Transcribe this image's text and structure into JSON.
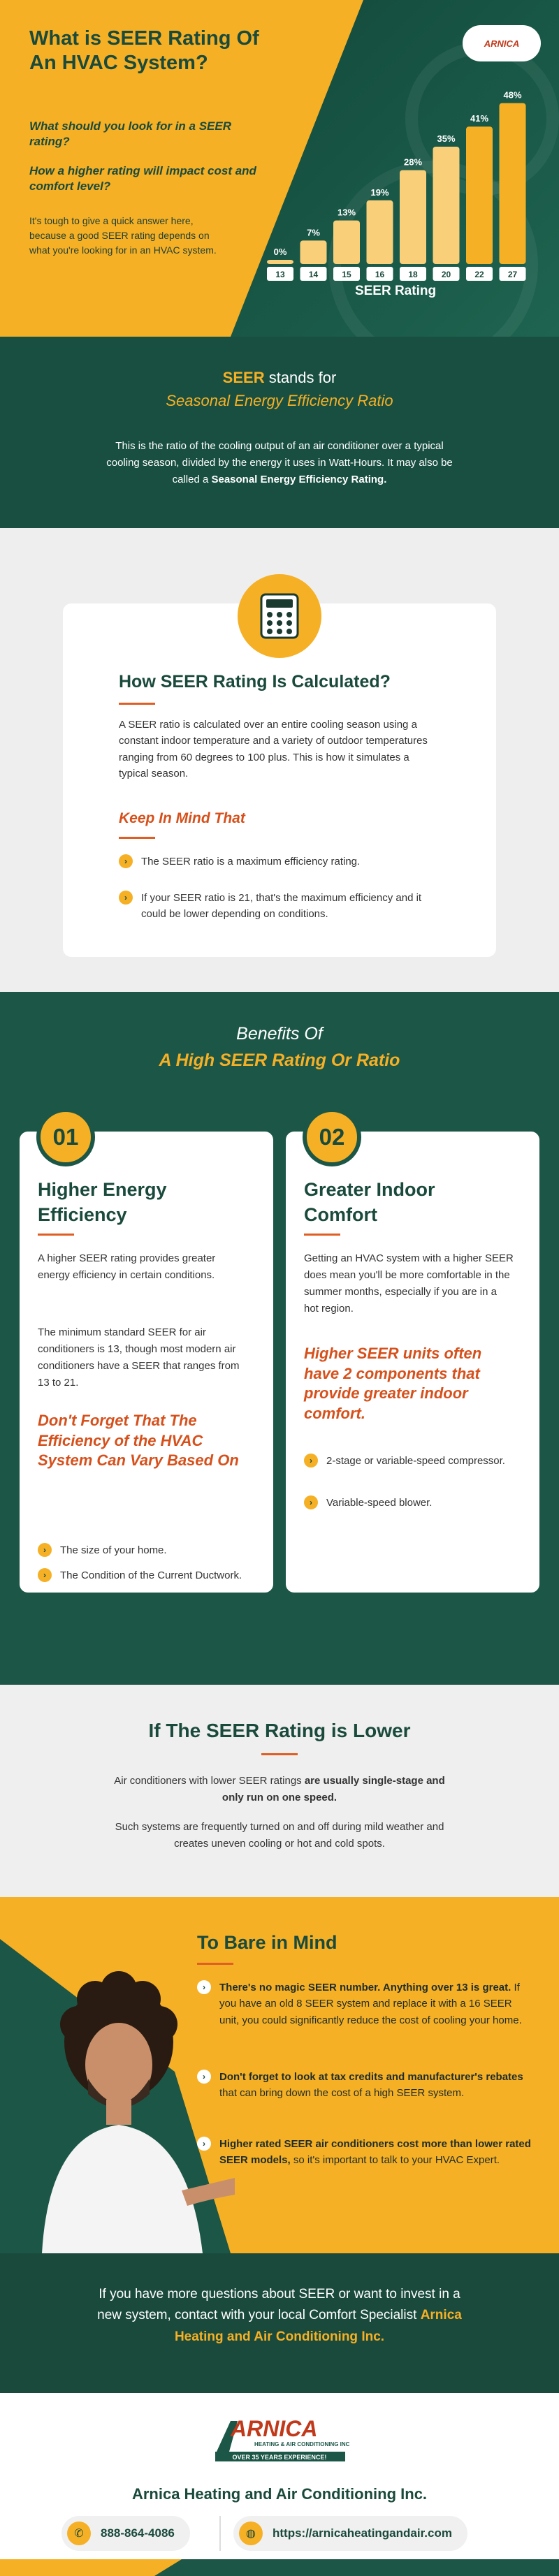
{
  "hero": {
    "title": "What is SEER Rating Of An HVAC System?",
    "question1": "What should you look for in a SEER rating?",
    "question2": "How a higher rating will impact cost and comfort level?",
    "text": "It's tough to give a quick answer here, because a good SEER rating depends on what you're looking for in an HVAC system.",
    "logo_text": "ARNICA"
  },
  "chart_data": {
    "type": "bar",
    "categories": [
      "13",
      "14",
      "15",
      "16",
      "18",
      "20",
      "22",
      "27"
    ],
    "values": [
      0,
      7,
      13,
      19,
      28,
      35,
      41,
      48
    ],
    "value_labels": [
      "0%",
      "7%",
      "13%",
      "19%",
      "28%",
      "35%",
      "41%",
      "48%"
    ],
    "title": "",
    "xlabel": "SEER Rating",
    "ylabel": "",
    "ylim": [
      0,
      50
    ],
    "bar_color": "#f6b026",
    "bar_color_light": "#f9cf7a"
  },
  "stands": {
    "accent": "SEER",
    "line1_rest": " stands for",
    "line2": "Seasonal Energy Efficiency Ratio",
    "body": "This is the ratio of the cooling output of an air conditioner over a typical cooling season, divided by the energy it uses in Watt-Hours. It may also be called a ",
    "body_bold": "Seasonal Energy Efficiency Rating."
  },
  "calc": {
    "icon": "calculator-icon",
    "title": "How SEER Rating Is Calculated?",
    "body": "A SEER ratio is calculated over an entire cooling season using a constant indoor temperature and a variety of outdoor temperatures ranging from 60 degrees to 100 plus. This is how it simulates a typical season.",
    "keep_title": "Keep In Mind That",
    "bullets": [
      "The SEER ratio is a maximum efficiency rating.",
      "If your SEER ratio is 21, that's the maximum efficiency and it could be lower depending on conditions."
    ]
  },
  "benefits": {
    "title1": "Benefits Of",
    "title2": "A High SEER Rating Or Ratio",
    "cards": [
      {
        "num": "01",
        "title": "Higher Energy Efficiency",
        "p1": "A higher SEER rating provides greater energy efficiency in certain conditions.",
        "p2": "The minimum standard SEER for air conditioners is 13, though most modern air conditioners have a SEER that ranges from 13 to 21.",
        "orange": "Don't Forget That The Efficiency of the HVAC System Can Vary Based On",
        "bullets": [
          "The size of your home.",
          "The Condition of the Current Ductwork."
        ]
      },
      {
        "num": "02",
        "title": "Greater Indoor Comfort",
        "p1": "Getting an HVAC system with a higher SEER does mean you'll be more comfortable in the summer months, especially if you are in a hot region.",
        "orange": "Higher SEER units often have 2 components that provide greater indoor comfort.",
        "bullets": [
          "2-stage or variable-speed compressor.",
          "Variable-speed blower."
        ]
      }
    ]
  },
  "lower": {
    "title": "If The SEER Rating is Lower",
    "p1a": "Air conditioners with lower SEER ratings ",
    "p1b": "are usually single-stage and only run on one speed.",
    "p2": "Such systems are frequently turned on and off during mild weather and creates uneven cooling or hot and cold spots."
  },
  "bare": {
    "title": "To Bare in Mind",
    "items": [
      {
        "bold": "There's no magic SEER number. Anything over 13 is great.",
        "rest": " If you have an old 8 SEER system and replace it with a 16 SEER unit, you could significantly reduce the cost of cooling your home."
      },
      {
        "bold": "Don't forget to look at tax credits and manufacturer's rebates",
        "rest": " that can bring down the cost of a high SEER system."
      },
      {
        "bold": "Higher rated SEER air conditioners cost more than lower rated SEER models,",
        "rest": " so it's important to talk to your HVAC Expert."
      }
    ]
  },
  "contact": {
    "text": "If you have more questions about SEER or want to invest in a new system, contact with your local Comfort Specialist",
    "company": "Arnica Heating and Air Conditioning Inc."
  },
  "footer": {
    "logo_main": "ARNICA",
    "logo_sub": "HEATING & AIR CONDITIONING INC.",
    "logo_tag": "OVER 35 YEARS EXPERIENCE!",
    "company": "Arnica Heating and Air Conditioning Inc.",
    "phone": "888-864-4086",
    "website": "https://arnicaheatingandair.com"
  }
}
